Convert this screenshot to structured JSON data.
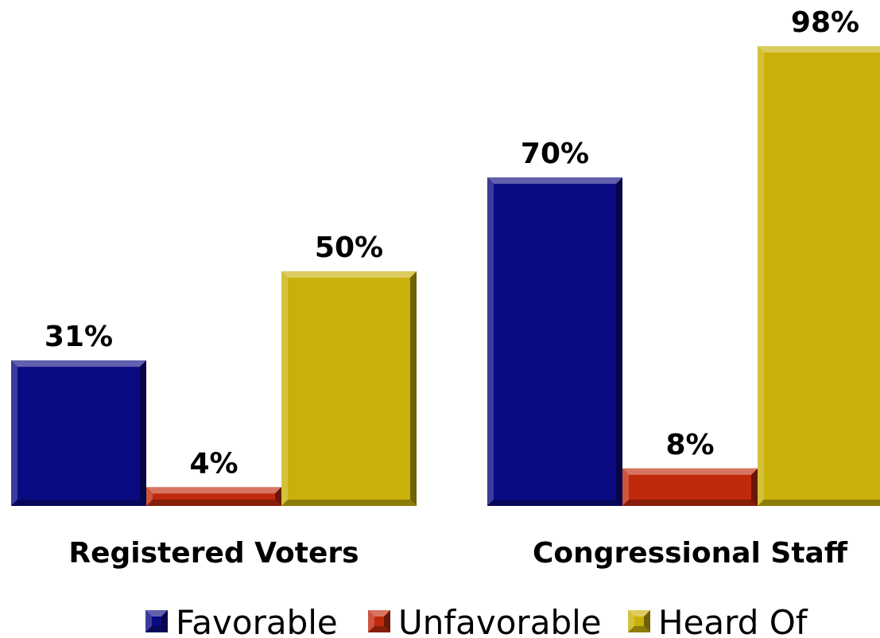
{
  "chart_data": {
    "type": "bar",
    "categories": [
      "Registered Voters",
      "Congressional Staff"
    ],
    "series": [
      {
        "name": "Favorable",
        "values": [
          31,
          70
        ],
        "color": "#0a0a82"
      },
      {
        "name": "Unfavorable",
        "values": [
          4,
          8
        ],
        "color": "#c02a0c"
      },
      {
        "name": "Heard Of",
        "values": [
          50,
          98
        ],
        "color": "#c9b10a"
      }
    ],
    "value_labels": [
      [
        "31%",
        "70%"
      ],
      [
        "4%",
        "8%"
      ],
      [
        "50%",
        "98%"
      ]
    ],
    "ylim": [
      0,
      100
    ],
    "grid": false,
    "legend_position": "bottom",
    "title": "",
    "xlabel": "",
    "ylabel": ""
  }
}
